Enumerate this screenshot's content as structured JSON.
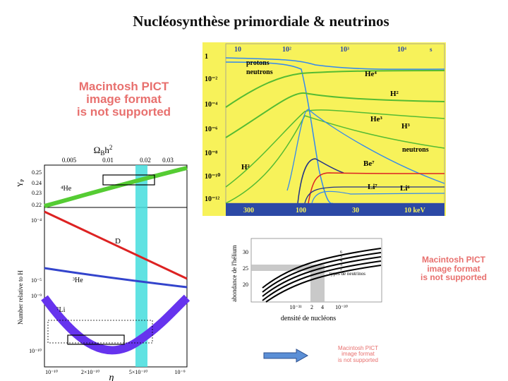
{
  "title": "Nucléosynthèse primordiale & neutrinos",
  "placeholders": [
    {
      "lines": [
        "Macintosh PICT",
        "image format",
        "is not supported"
      ]
    },
    {
      "lines": [
        "Macintosh PICT",
        "image format",
        "is not supported"
      ]
    },
    {
      "lines": [
        "Macintosh PICT",
        "image format",
        "is not supported"
      ]
    }
  ],
  "left_plot": {
    "top_axis_label": "Ω",
    "top_axis_sub": "B",
    "top_axis_suffix": "h",
    "top_axis_sup": "2",
    "top_ticks": [
      "0.005",
      "0.01",
      "0.02",
      "0.03"
    ],
    "yp_label": "Y",
    "yp_sub": "P",
    "yp_ticks": [
      "0.25",
      "0.24",
      "0.23",
      "0.22"
    ],
    "y_label": "Number relative to H",
    "y_ticks": [
      "10⁻⁴",
      "10⁻⁵",
      "10⁻⁹",
      "10⁻¹⁰"
    ],
    "x_ticks": [
      "10⁻¹⁰",
      "2×10⁻¹⁰",
      "5×10⁻¹⁰",
      "10⁻⁹"
    ],
    "x_label": "η",
    "labels": {
      "he4": "⁴He",
      "d": "D",
      "he3": "³He",
      "li7": "⁷Li"
    },
    "colors": {
      "he4": "#55cc33",
      "d": "#dd2222",
      "he3": "#3344cc",
      "li7": "#6633ee",
      "band": "#44dddd"
    }
  },
  "right_plot": {
    "top_ticks": [
      "10",
      "10²",
      "10³",
      "10⁴"
    ],
    "corner": "s",
    "y_ticks": [
      "1",
      "10⁻²",
      "10⁻⁴",
      "10⁻⁶",
      "10⁻⁸",
      "10⁻¹⁰",
      "10⁻¹²"
    ],
    "bottom_ticks": [
      "300",
      "100",
      "30",
      "10 keV"
    ],
    "labels": {
      "protons": "protons",
      "neutrons_top": "neutrons",
      "he4": "He⁴",
      "h2a": "H²",
      "he3": "He³",
      "h3": "H³",
      "neutrons_right": "neutrons",
      "h2b": "H²",
      "be7": "Be⁷",
      "li7": "Li⁷",
      "li6": "Li⁶"
    },
    "colors": {
      "bg": "#f7f25a",
      "axis_bg": "#2c49a5",
      "green": "#55bb33",
      "blue": "#3388ee",
      "red": "#dd2222",
      "dark": "#223388"
    }
  },
  "bottom_plot": {
    "y_label": "abondance de l'hélium",
    "y_ticks": [
      "30",
      "25",
      "20"
    ],
    "x_label": "densité de nucléons",
    "x_ticks": [
      "10⁻³¹",
      "2",
      "4",
      "10⁻³⁰"
    ],
    "annotation": "types de neutrinos",
    "curve_labels": [
      "6",
      "5",
      "4",
      "3",
      "2"
    ]
  },
  "arrow": {
    "color": "#5b8fd6"
  }
}
